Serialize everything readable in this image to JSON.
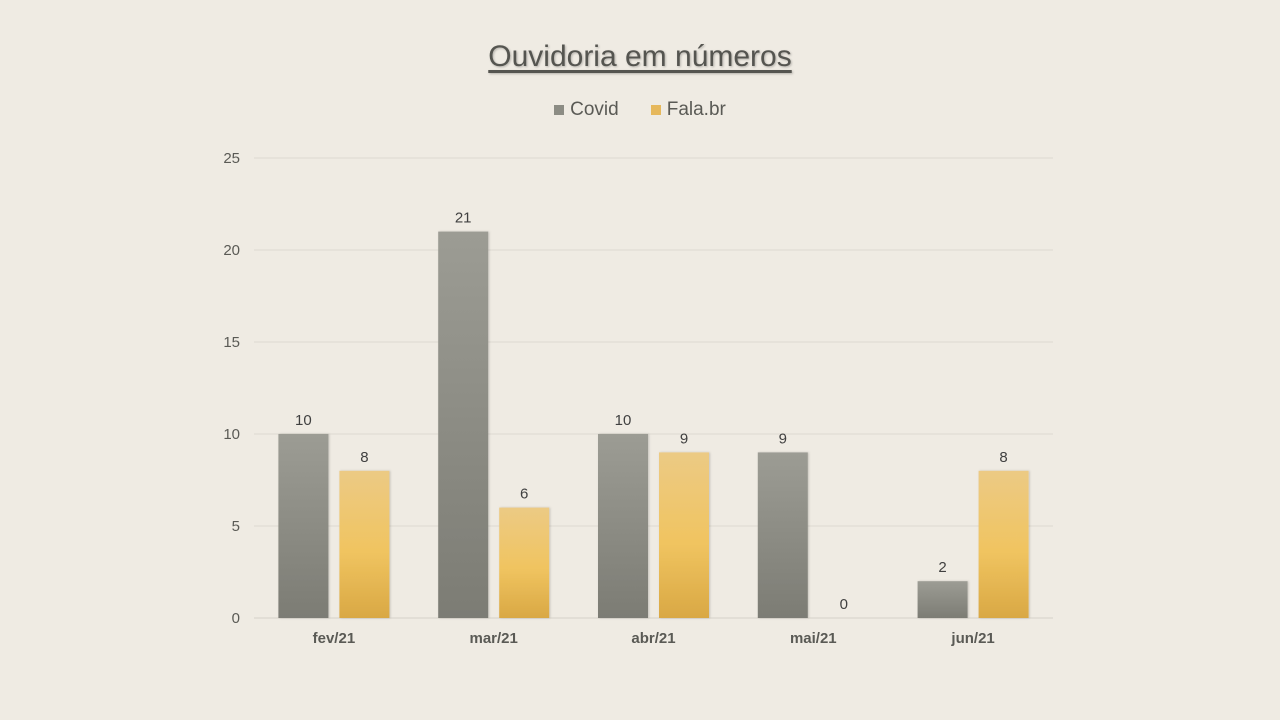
{
  "chart_data": {
    "type": "bar",
    "title": "Ouvidoria em números",
    "categories": [
      "fev/21",
      "mar/21",
      "abr/21",
      "mai/21",
      "jun/21"
    ],
    "series": [
      {
        "name": "Covid",
        "values": [
          10,
          21,
          10,
          9,
          2
        ],
        "color": "#8c8c84"
      },
      {
        "name": "Fala.br",
        "values": [
          8,
          6,
          9,
          0,
          8
        ],
        "color": "#e6b85c"
      }
    ],
    "ylim": [
      0,
      25
    ],
    "yticks": [
      0,
      5,
      10,
      15,
      20,
      25
    ],
    "grid": true,
    "legend_position": "top",
    "xlabel": "",
    "ylabel": ""
  }
}
